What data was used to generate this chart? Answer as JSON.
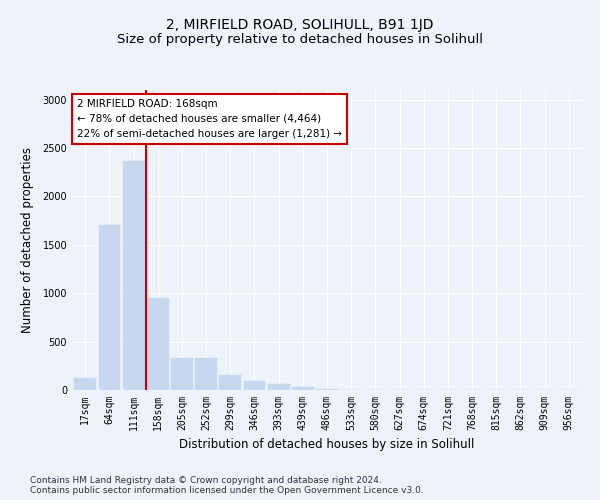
{
  "title": "2, MIRFIELD ROAD, SOLIHULL, B91 1JD",
  "subtitle": "Size of property relative to detached houses in Solihull",
  "xlabel": "Distribution of detached houses by size in Solihull",
  "ylabel": "Number of detached properties",
  "categories": [
    "17sqm",
    "64sqm",
    "111sqm",
    "158sqm",
    "205sqm",
    "252sqm",
    "299sqm",
    "346sqm",
    "393sqm",
    "439sqm",
    "486sqm",
    "533sqm",
    "580sqm",
    "627sqm",
    "674sqm",
    "721sqm",
    "768sqm",
    "815sqm",
    "862sqm",
    "909sqm",
    "956sqm"
  ],
  "values": [
    120,
    1700,
    2370,
    950,
    330,
    330,
    150,
    90,
    60,
    30,
    10,
    5,
    2,
    0,
    0,
    0,
    0,
    0,
    0,
    0,
    0
  ],
  "bar_color": "#c5d8ef",
  "bar_edge_color": "#c5d8ef",
  "vline_x_index": 2.5,
  "vline_color": "#cc0000",
  "annotation_text": "2 MIRFIELD ROAD: 168sqm\n← 78% of detached houses are smaller (4,464)\n22% of semi-detached houses are larger (1,281) →",
  "annotation_box_color": "#ffffff",
  "annotation_box_edge_color": "#cc0000",
  "ylim": [
    0,
    3100
  ],
  "yticks": [
    0,
    500,
    1000,
    1500,
    2000,
    2500,
    3000
  ],
  "footnote": "Contains HM Land Registry data © Crown copyright and database right 2024.\nContains public sector information licensed under the Open Government Licence v3.0.",
  "background_color": "#eef2f9",
  "plot_bg_color": "#eef2f9",
  "title_fontsize": 10,
  "subtitle_fontsize": 9.5,
  "tick_fontsize": 7,
  "ylabel_fontsize": 8.5,
  "xlabel_fontsize": 8.5,
  "footnote_fontsize": 6.5
}
